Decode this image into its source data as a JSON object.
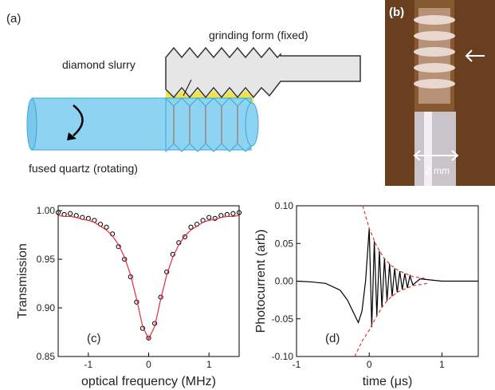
{
  "panel_a": {
    "label": "(a)",
    "grinding_form": "grinding form (fixed)",
    "diamond_slurry": "diamond slurry",
    "fused_quartz": "fused quartz (rotating)"
  },
  "panel_b": {
    "label": "(b)",
    "scale": "2 mm"
  },
  "chart_data": [
    {
      "type": "scatter",
      "annotation": "(c)",
      "xlabel": "optical frequency (MHz)",
      "ylabel": "Transmission",
      "xlim": [
        -1.5,
        1.5
      ],
      "xticks": [
        -1,
        0,
        1
      ],
      "ylim": [
        0.85,
        1.005
      ],
      "yticks": [
        {
          "value": 0.85,
          "label": "0.85"
        },
        {
          "value": 0.9,
          "label": "0.90"
        },
        {
          "value": 0.95,
          "label": "0.95"
        },
        {
          "value": 1.0,
          "label": "1.00"
        }
      ],
      "series": [
        {
          "style": "circles",
          "color": "#000000",
          "x": [
            -1.5,
            -1.4,
            -1.3,
            -1.2,
            -1.1,
            -1.0,
            -0.9,
            -0.8,
            -0.7,
            -0.6,
            -0.5,
            -0.4,
            -0.3,
            -0.2,
            -0.1,
            0,
            0.1,
            0.2,
            0.3,
            0.4,
            0.5,
            0.6,
            0.7,
            0.8,
            0.9,
            1.0,
            1.1,
            1.2,
            1.3,
            1.4,
            1.5
          ],
          "values": [
            0.998,
            0.996,
            0.997,
            0.995,
            0.993,
            0.992,
            0.99,
            0.986,
            0.983,
            0.976,
            0.963,
            0.95,
            0.932,
            0.906,
            0.879,
            0.869,
            0.884,
            0.911,
            0.937,
            0.955,
            0.967,
            0.973,
            0.983,
            0.986,
            0.99,
            0.993,
            0.992,
            0.995,
            0.996,
            0.997,
            0.998
          ]
        },
        {
          "style": "line",
          "color": "#e0303a",
          "x": [
            -1.5,
            -1.4,
            -1.3,
            -1.2,
            -1.1,
            -1.0,
            -0.9,
            -0.8,
            -0.7,
            -0.6,
            -0.5,
            -0.4,
            -0.3,
            -0.2,
            -0.1,
            0,
            0.1,
            0.2,
            0.3,
            0.4,
            0.5,
            0.6,
            0.7,
            0.8,
            0.9,
            1.0,
            1.1,
            1.2,
            1.3,
            1.4,
            1.5
          ],
          "values": [
            0.995,
            0.994,
            0.994,
            0.993,
            0.991,
            0.99,
            0.988,
            0.984,
            0.98,
            0.974,
            0.965,
            0.952,
            0.934,
            0.909,
            0.881,
            0.868,
            0.881,
            0.909,
            0.934,
            0.952,
            0.965,
            0.974,
            0.98,
            0.984,
            0.988,
            0.99,
            0.991,
            0.993,
            0.994,
            0.994,
            0.995
          ]
        }
      ]
    },
    {
      "type": "line",
      "annotation": "(d)",
      "xlabel": "time (μs)",
      "ylabel": "Photocurrent (arb)",
      "xlim": [
        -1,
        1.5
      ],
      "xticks": [
        -1,
        0,
        1
      ],
      "ylim": [
        -0.1,
        0.1
      ],
      "yticks": [
        {
          "value": -0.1,
          "label": "-0.10"
        },
        {
          "value": -0.05,
          "label": "-0.05"
        },
        {
          "value": 0,
          "label": "0.00"
        },
        {
          "value": 0.05,
          "label": "0.05"
        },
        {
          "value": 0.1,
          "label": "0.10"
        }
      ],
      "series": [
        {
          "style": "line",
          "color": "#000000",
          "x": [
            -1,
            -0.8,
            -0.6,
            -0.4,
            -0.3,
            -0.2,
            -0.15,
            -0.1,
            -0.05,
            0,
            0.035,
            0.07,
            0.105,
            0.14,
            0.175,
            0.21,
            0.245,
            0.28,
            0.315,
            0.35,
            0.385,
            0.42,
            0.455,
            0.49,
            0.525,
            0.56,
            0.6,
            0.7,
            1.0,
            1.5
          ],
          "values": [
            0,
            -0.001,
            -0.003,
            -0.012,
            -0.025,
            -0.045,
            -0.055,
            -0.04,
            0,
            0.07,
            -0.061,
            0.053,
            -0.046,
            0.04,
            -0.035,
            0.03,
            -0.026,
            0.023,
            -0.02,
            0.017,
            -0.015,
            0.013,
            -0.011,
            0.01,
            -0.009,
            0.007,
            -0.005,
            0.003,
            0,
            0
          ]
        },
        {
          "style": "dashed",
          "color": "#e0303a",
          "x": [
            -0.09,
            0,
            0.1,
            0.2,
            0.3,
            0.4,
            0.6,
            0.8
          ],
          "values": [
            0.1,
            0.07,
            0.047,
            0.031,
            0.021,
            0.014,
            0.006,
            0.003
          ]
        },
        {
          "style": "dashed",
          "color": "#e0303a",
          "x": [
            -0.2,
            -0.1,
            0,
            0.1,
            0.2,
            0.3,
            0.4,
            0.6,
            0.8
          ],
          "values": [
            -0.1,
            -0.08,
            -0.065,
            -0.047,
            -0.031,
            -0.021,
            -0.014,
            -0.006,
            -0.003
          ]
        }
      ]
    }
  ]
}
